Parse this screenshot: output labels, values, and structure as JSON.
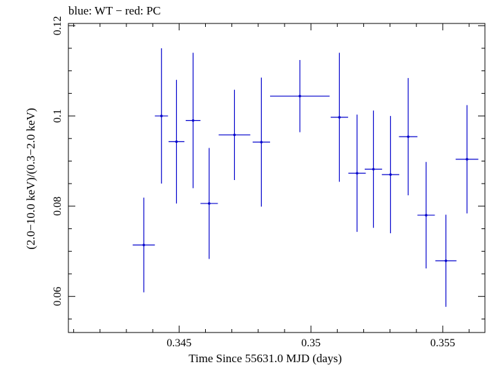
{
  "chart_data": {
    "type": "scatter",
    "title": "blue: WT − red: PC",
    "xlabel": "Time Since 55631.0 MJD (days)",
    "ylabel": "(2.0−10.0 keV)/(0.3−2.0 keV)",
    "xlim": [
      0.3408,
      0.3566
    ],
    "ylim": [
      0.052,
      0.1205
    ],
    "x_ticks": [
      0.345,
      0.35,
      0.355
    ],
    "x_tick_labels": [
      "0.345",
      "0.35",
      "0.355"
    ],
    "y_ticks": [
      0.06,
      0.08,
      0.1,
      0.12
    ],
    "y_tick_labels": [
      "0.06",
      "0.08",
      "0.1",
      "0.12"
    ],
    "grid": false,
    "series": [
      {
        "color": "#0000cc",
        "points": [
          {
            "x": 0.34366,
            "y": 0.0714,
            "xerr": 0.00042,
            "yerr": 0.0105
          },
          {
            "x": 0.34433,
            "y": 0.1,
            "xerr": 0.00025,
            "yerr": 0.015
          },
          {
            "x": 0.3449,
            "y": 0.0943,
            "xerr": 0.0003,
            "yerr": 0.0137
          },
          {
            "x": 0.34553,
            "y": 0.099,
            "xerr": 0.00028,
            "yerr": 0.015
          },
          {
            "x": 0.34614,
            "y": 0.0806,
            "xerr": 0.00033,
            "yerr": 0.0123
          },
          {
            "x": 0.3471,
            "y": 0.0958,
            "xerr": 0.0006,
            "yerr": 0.01
          },
          {
            "x": 0.34812,
            "y": 0.0942,
            "xerr": 0.00033,
            "yerr": 0.0143
          },
          {
            "x": 0.34958,
            "y": 0.1044,
            "xerr": 0.00113,
            "yerr": 0.008
          },
          {
            "x": 0.35108,
            "y": 0.0997,
            "xerr": 0.00033,
            "yerr": 0.0143
          },
          {
            "x": 0.35175,
            "y": 0.0873,
            "xerr": 0.00033,
            "yerr": 0.013
          },
          {
            "x": 0.35237,
            "y": 0.0882,
            "xerr": 0.00033,
            "yerr": 0.013
          },
          {
            "x": 0.35302,
            "y": 0.087,
            "xerr": 0.00033,
            "yerr": 0.013
          },
          {
            "x": 0.35369,
            "y": 0.0954,
            "xerr": 0.00035,
            "yerr": 0.013
          },
          {
            "x": 0.35437,
            "y": 0.078,
            "xerr": 0.00033,
            "yerr": 0.0118
          },
          {
            "x": 0.35512,
            "y": 0.0679,
            "xerr": 0.0004,
            "yerr": 0.0102
          },
          {
            "x": 0.35592,
            "y": 0.0904,
            "xerr": 0.00043,
            "yerr": 0.012
          }
        ]
      }
    ]
  }
}
